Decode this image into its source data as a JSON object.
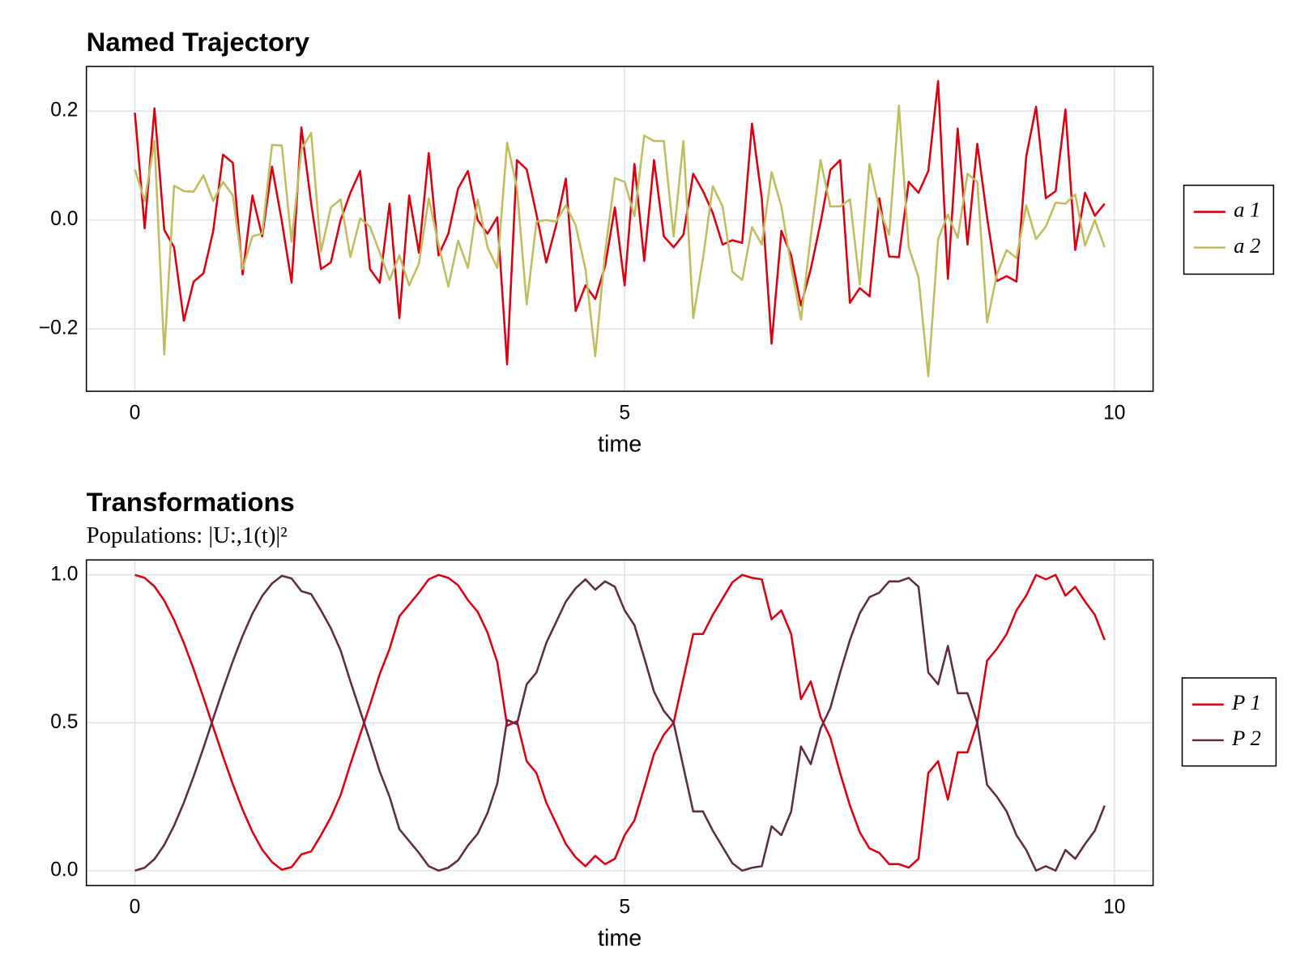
{
  "chart_data": [
    {
      "type": "line",
      "title": "Named Trajectory",
      "xlabel": "time",
      "x": [
        0,
        0.1,
        0.2,
        0.3,
        0.4,
        0.5,
        0.6,
        0.7,
        0.8,
        0.9,
        1,
        1.1,
        1.2,
        1.3,
        1.4,
        1.5,
        1.6,
        1.7,
        1.8,
        1.9,
        2,
        2.1,
        2.2,
        2.3,
        2.4,
        2.5,
        2.6,
        2.7,
        2.8,
        2.9,
        3,
        3.1,
        3.2,
        3.3,
        3.4,
        3.5,
        3.6,
        3.7,
        3.8,
        3.9,
        4,
        4.1,
        4.2,
        4.3,
        4.4,
        4.5,
        4.6,
        4.7,
        4.8,
        4.9,
        5,
        5.1,
        5.2,
        5.3,
        5.4,
        5.5,
        5.6,
        5.7,
        5.8,
        5.9,
        6,
        6.1,
        6.2,
        6.3,
        6.4,
        6.5,
        6.6,
        6.7,
        6.8,
        6.9,
        7,
        7.1,
        7.2,
        7.3,
        7.4,
        7.5,
        7.6,
        7.7,
        7.8,
        7.9,
        8,
        8.1,
        8.2,
        8.3,
        8.4,
        8.5,
        8.6,
        8.7,
        8.8,
        8.9,
        9,
        9.1,
        9.2,
        9.3,
        9.4,
        9.5,
        9.6,
        9.7,
        9.8,
        9.9
      ],
      "series": [
        {
          "name": "a 1",
          "color": "#d90012",
          "values": [
            0.197,
            -0.015,
            0.205,
            -0.018,
            -0.05,
            -0.185,
            -0.113,
            -0.098,
            -0.02,
            0.12,
            0.105,
            -0.1,
            0.045,
            -0.03,
            0.098,
            -0.002,
            -0.115,
            0.17,
            0.03,
            -0.09,
            -0.078,
            0.0,
            0.05,
            0.09,
            -0.09,
            -0.115,
            0.03,
            -0.18,
            0.045,
            -0.06,
            0.123,
            -0.065,
            -0.025,
            0.058,
            0.09,
            0.0,
            -0.025,
            0.005,
            -0.265,
            0.11,
            0.093,
            0.01,
            -0.078,
            -0.01,
            0.076,
            -0.167,
            -0.12,
            -0.145,
            -0.085,
            0.023,
            -0.12,
            0.103,
            -0.075,
            0.11,
            -0.03,
            -0.05,
            -0.027,
            0.085,
            0.053,
            0.013,
            -0.045,
            -0.037,
            -0.042,
            0.177,
            0.04,
            -0.227,
            -0.02,
            -0.065,
            -0.157,
            -0.09,
            -0.005,
            0.092,
            0.11,
            -0.152,
            -0.125,
            -0.14,
            0.04,
            -0.067,
            -0.068,
            0.07,
            0.05,
            0.09,
            0.255,
            -0.108,
            0.168,
            -0.045,
            0.14,
            0.005,
            -0.112,
            -0.103,
            -0.113,
            0.117,
            0.208,
            0.04,
            0.053,
            0.203,
            -0.055,
            0.05,
            0.008,
            0.03
          ]
        },
        {
          "name": "a 2",
          "color": "#bfbd60",
          "values": [
            0.093,
            0.035,
            0.145,
            -0.247,
            0.063,
            0.053,
            0.052,
            0.082,
            0.035,
            0.07,
            0.045,
            -0.09,
            -0.03,
            -0.025,
            0.138,
            0.137,
            -0.04,
            0.13,
            0.16,
            -0.058,
            0.023,
            0.038,
            -0.068,
            0.003,
            -0.012,
            -0.06,
            -0.11,
            -0.065,
            -0.12,
            -0.08,
            0.04,
            -0.045,
            -0.122,
            -0.038,
            -0.088,
            0.038,
            -0.05,
            -0.088,
            0.142,
            0.06,
            -0.155,
            -0.003,
            0.0,
            -0.003,
            0.027,
            -0.01,
            -0.09,
            -0.25,
            -0.06,
            0.077,
            0.07,
            0.007,
            0.155,
            0.145,
            0.145,
            -0.03,
            0.145,
            -0.18,
            -0.07,
            0.062,
            0.025,
            -0.095,
            -0.11,
            -0.013,
            -0.045,
            0.088,
            0.025,
            -0.085,
            -0.183,
            -0.03,
            0.11,
            0.025,
            0.025,
            0.038,
            -0.118,
            0.103,
            0.02,
            -0.027,
            0.21,
            -0.05,
            -0.105,
            -0.287,
            -0.035,
            0.01,
            -0.033,
            0.085,
            0.07,
            -0.188,
            -0.1,
            -0.055,
            -0.07,
            0.027,
            -0.035,
            -0.012,
            0.032,
            0.03,
            0.047,
            -0.047,
            0.0,
            -0.05
          ]
        }
      ],
      "xlim": [
        -0.495,
        10.395
      ],
      "xticks": [
        0,
        5,
        10
      ],
      "ylim": [
        -0.3145,
        0.282
      ],
      "yticks": [
        {
          "value": -0.2,
          "label": "−0.2"
        },
        {
          "value": 0,
          "label": "0.0"
        },
        0.2
      ],
      "grid": true,
      "legend": "right"
    },
    {
      "type": "line",
      "title": "Transformations",
      "subtitle": "Populations: |U:,1(t)|²",
      "xlabel": "time",
      "x": [
        0,
        0.1,
        0.2,
        0.3,
        0.4,
        0.5,
        0.6,
        0.7,
        0.8,
        0.9,
        1,
        1.1,
        1.2,
        1.3,
        1.4,
        1.5,
        1.6,
        1.7,
        1.8,
        1.9,
        2,
        2.1,
        2.2,
        2.3,
        2.4,
        2.5,
        2.6,
        2.7,
        2.8,
        2.9,
        3,
        3.1,
        3.2,
        3.3,
        3.4,
        3.5,
        3.6,
        3.7,
        3.8,
        3.9,
        4,
        4.1,
        4.2,
        4.3,
        4.4,
        4.5,
        4.6,
        4.7,
        4.8,
        4.9,
        5,
        5.1,
        5.2,
        5.3,
        5.4,
        5.5,
        5.6,
        5.7,
        5.8,
        5.9,
        6,
        6.1,
        6.2,
        6.3,
        6.4,
        6.5,
        6.6,
        6.7,
        6.8,
        6.9,
        7,
        7.1,
        7.2,
        7.3,
        7.4,
        7.5,
        7.6,
        7.7,
        7.8,
        7.9,
        8,
        8.1,
        8.2,
        8.3,
        8.4,
        8.5,
        8.6,
        8.7,
        8.8,
        8.9,
        9,
        9.1,
        9.2,
        9.3,
        9.4,
        9.5,
        9.6,
        9.7,
        9.8,
        9.9
      ],
      "series": [
        {
          "name": "P 1",
          "color": "#d90012",
          "values": [
            1.0,
            0.99,
            0.961,
            0.913,
            0.848,
            0.77,
            0.681,
            0.585,
            0.485,
            0.386,
            0.292,
            0.206,
            0.131,
            0.071,
            0.029,
            0.003,
            0.012,
            0.055,
            0.065,
            0.12,
            0.18,
            0.255,
            0.36,
            0.46,
            0.56,
            0.665,
            0.75,
            0.86,
            0.9,
            0.94,
            0.985,
            1.0,
            0.99,
            0.965,
            0.915,
            0.875,
            0.805,
            0.705,
            0.49,
            0.505,
            0.37,
            0.33,
            0.23,
            0.16,
            0.09,
            0.045,
            0.015,
            0.05,
            0.022,
            0.04,
            0.12,
            0.17,
            0.28,
            0.395,
            0.46,
            0.5,
            0.65,
            0.8,
            0.8,
            0.865,
            0.92,
            0.975,
            1.0,
            0.99,
            0.985,
            0.85,
            0.88,
            0.8,
            0.58,
            0.64,
            0.52,
            0.45,
            0.33,
            0.22,
            0.13,
            0.075,
            0.06,
            0.022,
            0.022,
            0.01,
            0.04,
            0.33,
            0.37,
            0.24,
            0.4,
            0.4,
            0.5,
            0.71,
            0.75,
            0.8,
            0.88,
            0.93,
            1.0,
            0.985,
            1.0,
            0.93,
            0.96,
            0.91,
            0.865,
            0.78
          ]
        },
        {
          "name": "P 2",
          "color": "#5c2e47",
          "values": [
            0,
            0.01,
            0.039,
            0.087,
            0.152,
            0.23,
            0.319,
            0.415,
            0.515,
            0.614,
            0.708,
            0.794,
            0.869,
            0.929,
            0.971,
            0.997,
            0.988,
            0.945,
            0.935,
            0.88,
            0.82,
            0.745,
            0.64,
            0.54,
            0.44,
            0.335,
            0.25,
            0.14,
            0.1,
            0.06,
            0.015,
            0,
            0.01,
            0.035,
            0.085,
            0.125,
            0.195,
            0.295,
            0.51,
            0.495,
            0.63,
            0.67,
            0.77,
            0.84,
            0.91,
            0.955,
            0.985,
            0.95,
            0.978,
            0.96,
            0.88,
            0.83,
            0.72,
            0.605,
            0.54,
            0.5,
            0.35,
            0.2,
            0.2,
            0.135,
            0.08,
            0.025,
            0,
            0.01,
            0.015,
            0.15,
            0.12,
            0.2,
            0.42,
            0.36,
            0.48,
            0.55,
            0.67,
            0.78,
            0.87,
            0.925,
            0.94,
            0.978,
            0.978,
            0.99,
            0.96,
            0.67,
            0.63,
            0.76,
            0.6,
            0.6,
            0.5,
            0.29,
            0.25,
            0.2,
            0.12,
            0.07,
            0,
            0.015,
            0,
            0.07,
            0.04,
            0.09,
            0.135,
            0.22
          ]
        }
      ],
      "xlim": [
        -0.495,
        10.395
      ],
      "xticks": [
        0,
        5,
        10
      ],
      "ylim": [
        -0.0506,
        1.0506
      ],
      "yticks": [
        {
          "value": 0,
          "label": "0.0"
        },
        0.5,
        {
          "value": 1,
          "label": "1.0"
        }
      ],
      "grid": true,
      "legend": "right"
    }
  ]
}
